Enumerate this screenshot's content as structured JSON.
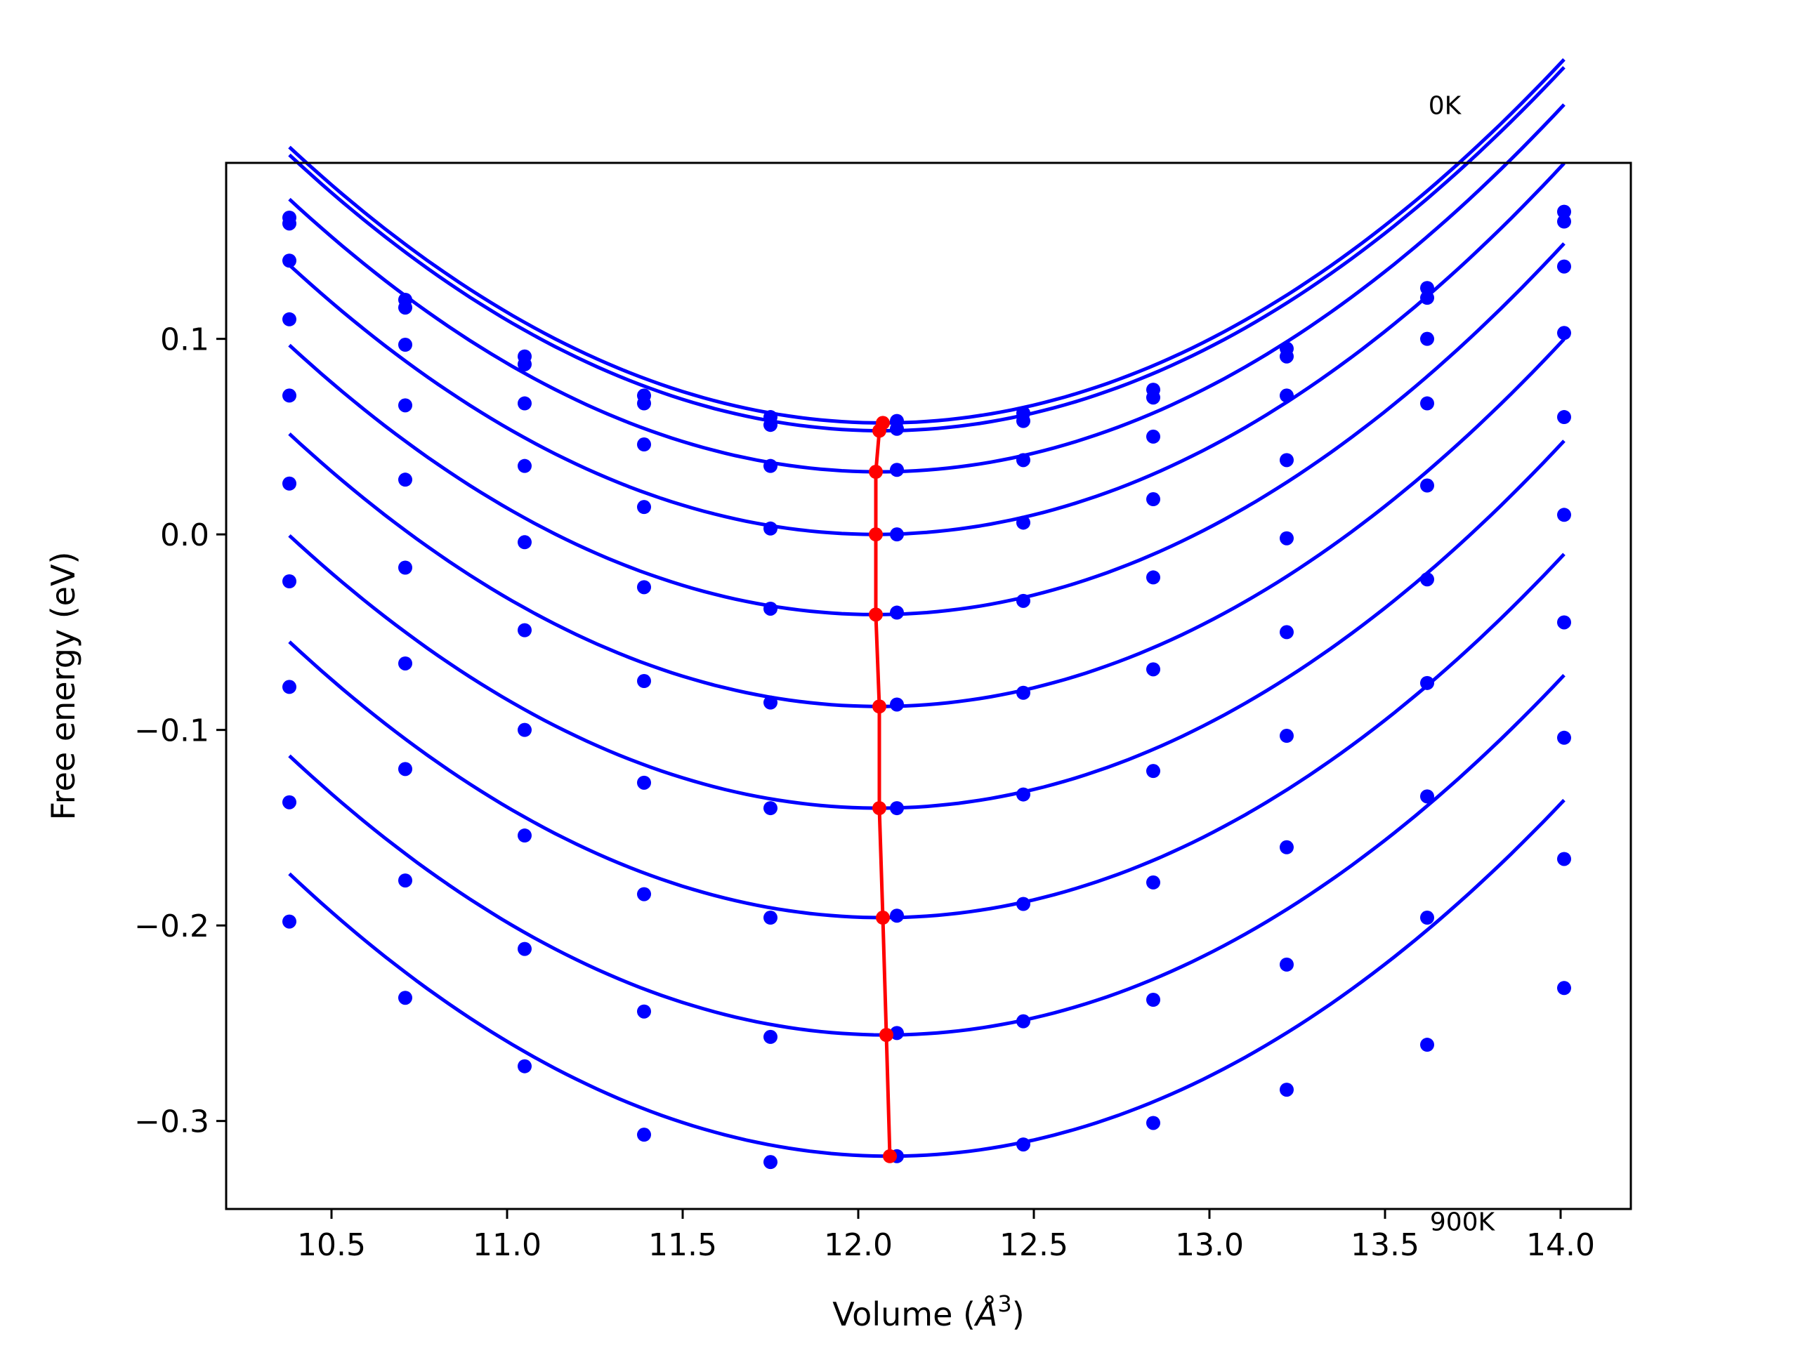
{
  "chart_data": {
    "type": "line",
    "xlabel": "Volume (Å³)",
    "xlabel_main": "Volume (",
    "xlabel_unit_base": "Å",
    "xlabel_unit_exp": "3",
    "xlabel_close": ")",
    "ylabel": "Free energy (eV)",
    "xlim": [
      10.2,
      14.2
    ],
    "ylim": [
      -0.345,
      0.19
    ],
    "xticks": [
      10.5,
      11.0,
      11.5,
      12.0,
      12.5,
      13.0,
      13.5,
      14.0
    ],
    "xtick_labels": [
      "10.5",
      "11.0",
      "11.5",
      "12.0",
      "12.5",
      "13.0",
      "13.5",
      "14.0"
    ],
    "yticks": [
      0.1,
      0.0,
      -0.1,
      -0.2,
      -0.3
    ],
    "ytick_labels": [
      "0.1",
      "0.0",
      "−0.1",
      "−0.2",
      "−0.3"
    ],
    "annotations": [
      {
        "text": "0K",
        "x": 13.67,
        "y": 0.215
      },
      {
        "text": "900K",
        "x": 13.72,
        "y": -0.356
      }
    ],
    "volumes": [
      10.38,
      10.71,
      11.05,
      11.39,
      11.75,
      12.11,
      12.47,
      12.84,
      13.22,
      13.62,
      14.01
    ],
    "curves_color": "#0000ff",
    "minima_color": "#ff0000",
    "series": [
      {
        "values": [
          0.162,
          0.12,
          0.091,
          0.071,
          0.06,
          0.058,
          0.062,
          0.074,
          0.095,
          0.126,
          0.165
        ],
        "fit": {
          "a": 0.0494,
          "v0": 12.07,
          "e0": 0.057
        }
      },
      {
        "values": [
          0.159,
          0.116,
          0.087,
          0.067,
          0.056,
          0.054,
          0.058,
          0.07,
          0.091,
          0.121,
          0.16
        ],
        "fit": {
          "a": 0.0494,
          "v0": 12.07,
          "e0": 0.053
        }
      },
      {
        "values": [
          0.14,
          0.097,
          0.067,
          0.046,
          0.035,
          0.033,
          0.038,
          0.05,
          0.071,
          0.1,
          0.137
        ],
        "fit": {
          "a": 0.0494,
          "v0": 12.06,
          "e0": 0.032
        }
      },
      {
        "values": [
          0.11,
          0.066,
          0.035,
          0.014,
          0.003,
          0.0,
          0.006,
          0.018,
          0.038,
          0.067,
          0.103
        ],
        "fit": {
          "a": 0.0494,
          "v0": 12.05,
          "e0": 0.0
        }
      },
      {
        "values": [
          0.071,
          0.028,
          -0.004,
          -0.027,
          -0.038,
          -0.04,
          -0.034,
          -0.022,
          -0.002,
          0.025,
          0.06
        ],
        "fit": {
          "a": 0.0494,
          "v0": 12.05,
          "e0": -0.041
        }
      },
      {
        "values": [
          0.026,
          -0.017,
          -0.049,
          -0.075,
          -0.086,
          -0.087,
          -0.081,
          -0.069,
          -0.05,
          -0.023,
          0.01
        ],
        "fit": {
          "a": 0.0494,
          "v0": 12.06,
          "e0": -0.088
        }
      },
      {
        "values": [
          -0.024,
          -0.066,
          -0.1,
          -0.127,
          -0.14,
          -0.14,
          -0.133,
          -0.121,
          -0.103,
          -0.076,
          -0.045
        ],
        "fit": {
          "a": 0.0494,
          "v0": 12.06,
          "e0": -0.14
        }
      },
      {
        "values": [
          -0.078,
          -0.12,
          -0.154,
          -0.184,
          -0.196,
          -0.195,
          -0.189,
          -0.178,
          -0.16,
          -0.134,
          -0.104
        ],
        "fit": {
          "a": 0.0494,
          "v0": 12.07,
          "e0": -0.196
        }
      },
      {
        "values": [
          -0.137,
          -0.177,
          -0.212,
          -0.244,
          -0.257,
          -0.255,
          -0.249,
          -0.238,
          -0.22,
          -0.196,
          -0.166
        ],
        "fit": {
          "a": 0.0494,
          "v0": 12.08,
          "e0": -0.256
        }
      },
      {
        "values": [
          -0.198,
          -0.237,
          -0.272,
          -0.307,
          -0.321,
          -0.318,
          -0.312,
          -0.301,
          -0.284,
          -0.261,
          -0.232
        ],
        "fit": {
          "a": 0.0494,
          "v0": 12.09,
          "e0": -0.318
        }
      }
    ],
    "minima": [
      {
        "x": 12.07,
        "y": 0.057
      },
      {
        "x": 12.06,
        "y": 0.053
      },
      {
        "x": 12.05,
        "y": 0.032
      },
      {
        "x": 12.05,
        "y": 0.0
      },
      {
        "x": 12.05,
        "y": -0.041
      },
      {
        "x": 12.06,
        "y": -0.088
      },
      {
        "x": 12.06,
        "y": -0.14
      },
      {
        "x": 12.07,
        "y": -0.196
      },
      {
        "x": 12.08,
        "y": -0.256
      },
      {
        "x": 12.09,
        "y": -0.318
      }
    ]
  }
}
